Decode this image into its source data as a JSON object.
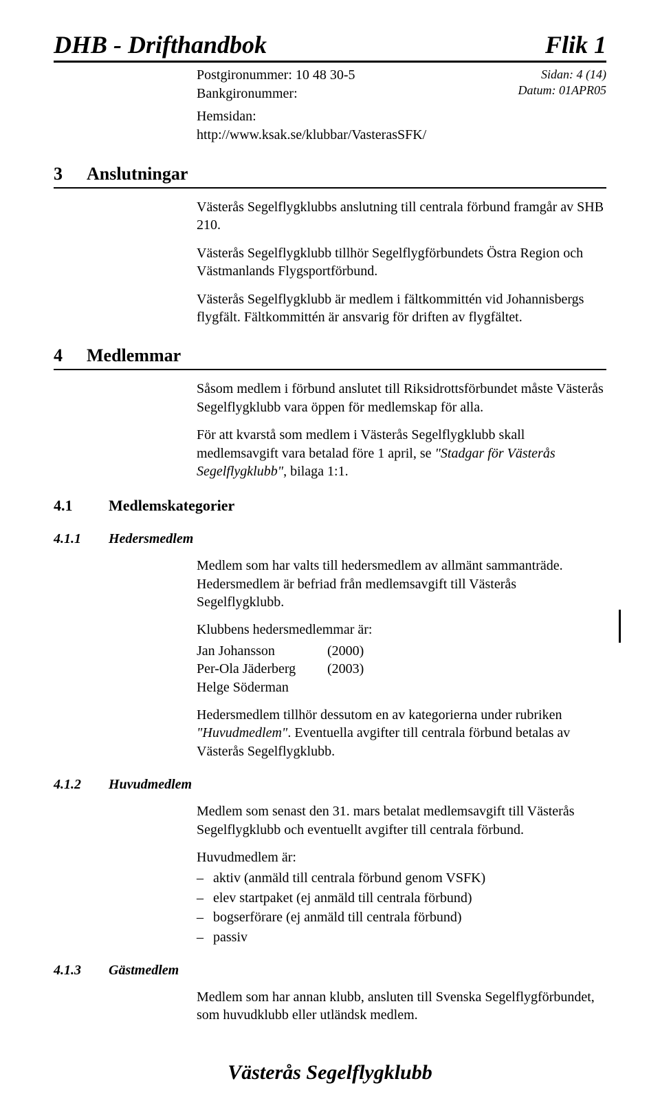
{
  "header": {
    "left": "DHB - Drifthandbok",
    "right": "Flik 1",
    "page_info": "Sidan: 4 (14)",
    "date_info": "Datum: 01APR05"
  },
  "top": {
    "postgiro": "Postgironummer: 10 48 30-5",
    "bankgiro": "Bankgironummer:",
    "website_label": "Hemsidan: http://www.ksak.se/klubbar/VasterasSFK/"
  },
  "s3": {
    "num": "3",
    "title": "Anslutningar",
    "p1": "Västerås Segelflygklubbs anslutning till centrala förbund framgår av SHB 210.",
    "p2": "Västerås Segelflygklubb tillhör Segelflygförbundets Östra Region och Västmanlands Flygsportförbund.",
    "p3": "Västerås Segelflygklubb är medlem i fältkommittén vid Johannisbergs flygfält. Fältkommittén är ansvarig för driften av flygfältet."
  },
  "s4": {
    "num": "4",
    "title": "Medlemmar",
    "p1": "Såsom medlem i förbund anslutet till Riksidrottsförbundet måste Västerås Segelflygklubb vara öppen för medlemskap för alla.",
    "p2a": "För att kvarstå som medlem i Västerås Segelflygklubb skall medlemsavgift vara betalad före 1 april, se ",
    "p2b_italic": "\"Stadgar för Västerås Segelflygklubb\"",
    "p2c": ", bilaga 1:1."
  },
  "s41": {
    "num": "4.1",
    "title": "Medlemskategorier"
  },
  "s411": {
    "num": "4.1.1",
    "title": "Hedersmedlem",
    "p1": "Medlem som har valts till hedersmedlem av allmänt sammanträde. Hedersmedlem är befriad från medlemsavgift till Västerås Segelflygklubb.",
    "p2": "Klubbens hedersmedlemmar är:",
    "honors": [
      {
        "name": "Jan Johansson",
        "year": "(2000)"
      },
      {
        "name": "Per-Ola Jäderberg",
        "year": "(2003)"
      },
      {
        "name": "Helge Söderman",
        "year": ""
      }
    ],
    "p3a": "Hedersmedlem tillhör dessutom en av kategorierna under rubriken ",
    "p3b_italic": "\"Huvudmedlem\"",
    "p3c": ". Eventuella avgifter till centrala förbund betalas av Västerås Segelflygklubb."
  },
  "s412": {
    "num": "4.1.2",
    "title": "Huvudmedlem",
    "p1": "Medlem som senast den 31. mars betalat medlemsavgift till Västerås Segelflygklubb och eventuellt avgifter till centrala förbund.",
    "p2": "Huvudmedlem är:",
    "items": [
      "aktiv (anmäld till centrala förbund genom VSFK)",
      "elev startpaket (ej anmäld till centrala förbund)",
      "bogserförare (ej anmäld till centrala förbund)",
      "passiv"
    ]
  },
  "s413": {
    "num": "4.1.3",
    "title": "Gästmedlem",
    "p1": "Medlem som har annan klubb, ansluten till Svenska Segelflygförbundet, som huvudklubb eller utländsk medlem."
  },
  "footer": "Västerås Segelflygklubb"
}
